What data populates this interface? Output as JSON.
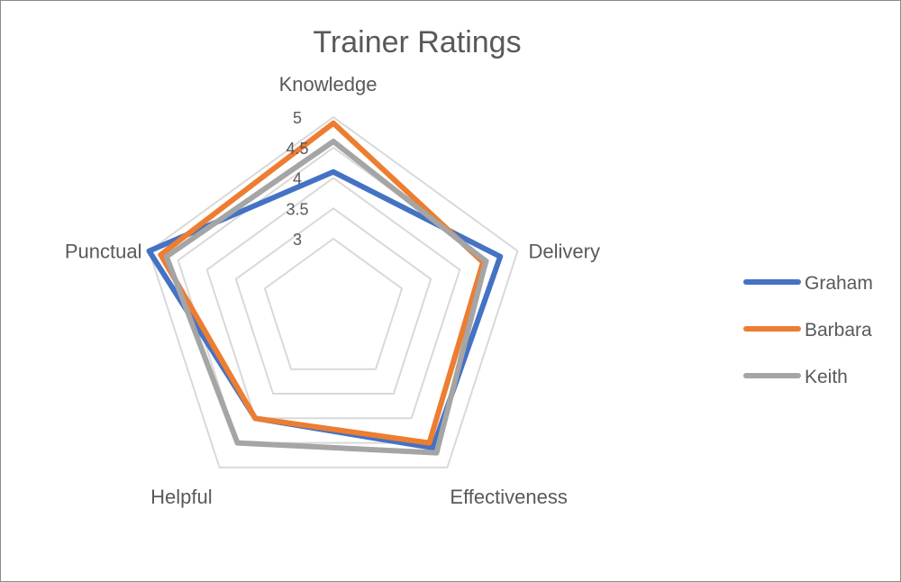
{
  "chart_data": {
    "type": "radar",
    "title": "Trainer Ratings",
    "categories": [
      "Knowledge",
      "Delivery",
      "Effectiveness",
      "Helpful",
      "Punctual"
    ],
    "rlim": [
      3,
      5
    ],
    "ticks": [
      "3",
      "3.5",
      "4",
      "4.5",
      "5"
    ],
    "tick_values": [
      3,
      3.5,
      4,
      4.5,
      5
    ],
    "grid": true,
    "legend_position": "right",
    "series": [
      {
        "name": "Graham",
        "color": "#4472C4",
        "values": [
          4.1,
          4.7,
          4.6,
          4.0,
          5.0
        ]
      },
      {
        "name": "Barbara",
        "color": "#ED7D31",
        "values": [
          4.9,
          4.4,
          4.5,
          4.0,
          4.8
        ]
      },
      {
        "name": "Keith",
        "color": "#A5A5A5",
        "values": [
          4.6,
          4.45,
          4.7,
          4.5,
          4.7
        ]
      }
    ]
  }
}
